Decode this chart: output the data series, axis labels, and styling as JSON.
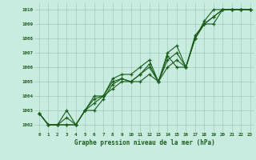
{
  "xlabel": "Graphe pression niveau de la mer (hPa)",
  "x": [
    0,
    1,
    2,
    3,
    4,
    5,
    6,
    7,
    8,
    9,
    10,
    11,
    12,
    13,
    14,
    15,
    16,
    17,
    18,
    19,
    20,
    21,
    22,
    23
  ],
  "series": [
    [
      1002.8,
      1002.0,
      1002.0,
      1002.0,
      1002.0,
      1003.0,
      1003.5,
      1004.0,
      1004.5,
      1005.0,
      1005.0,
      1005.0,
      1005.5,
      1005.0,
      1006.0,
      1006.5,
      1006.0,
      1008.0,
      1009.0,
      1009.5,
      1010.0,
      1010.0,
      1010.0,
      1010.0
    ],
    [
      1002.8,
      1002.0,
      1002.0,
      1002.5,
      1002.0,
      1003.0,
      1003.8,
      1004.0,
      1005.0,
      1005.2,
      1005.0,
      1005.5,
      1006.0,
      1005.0,
      1006.5,
      1007.0,
      1006.0,
      1008.0,
      1009.0,
      1009.5,
      1010.0,
      1010.0,
      1010.0,
      1010.0
    ],
    [
      1002.8,
      1002.0,
      1002.0,
      1003.0,
      1002.0,
      1003.0,
      1004.0,
      1004.0,
      1005.2,
      1005.5,
      1005.5,
      1006.0,
      1006.5,
      1005.0,
      1007.0,
      1007.5,
      1006.0,
      1008.0,
      1009.2,
      1010.0,
      1010.0,
      1010.0,
      1010.0,
      1010.0
    ],
    [
      1002.8,
      1002.0,
      1002.0,
      1002.0,
      1002.0,
      1003.0,
      1003.0,
      1003.8,
      1004.8,
      1005.2,
      1005.0,
      1005.5,
      1006.2,
      1005.0,
      1006.8,
      1006.0,
      1006.0,
      1008.2,
      1009.0,
      1009.0,
      1010.0,
      1010.0,
      1010.0,
      1010.0
    ]
  ],
  "line_color": "#1a5c1a",
  "marker_color": "#1a5c1a",
  "bg_color": "#c8ece0",
  "grid_color": "#9ecfb8",
  "label_color": "#1a5c1a",
  "ylim": [
    1001.5,
    1010.5
  ],
  "yticks": [
    1002,
    1003,
    1004,
    1005,
    1006,
    1007,
    1008,
    1009,
    1010
  ],
  "xticks": [
    0,
    1,
    2,
    3,
    4,
    5,
    6,
    7,
    8,
    9,
    10,
    11,
    12,
    13,
    14,
    15,
    16,
    17,
    18,
    19,
    20,
    21,
    22,
    23
  ],
  "marker_size": 3.0,
  "line_width": 0.8
}
